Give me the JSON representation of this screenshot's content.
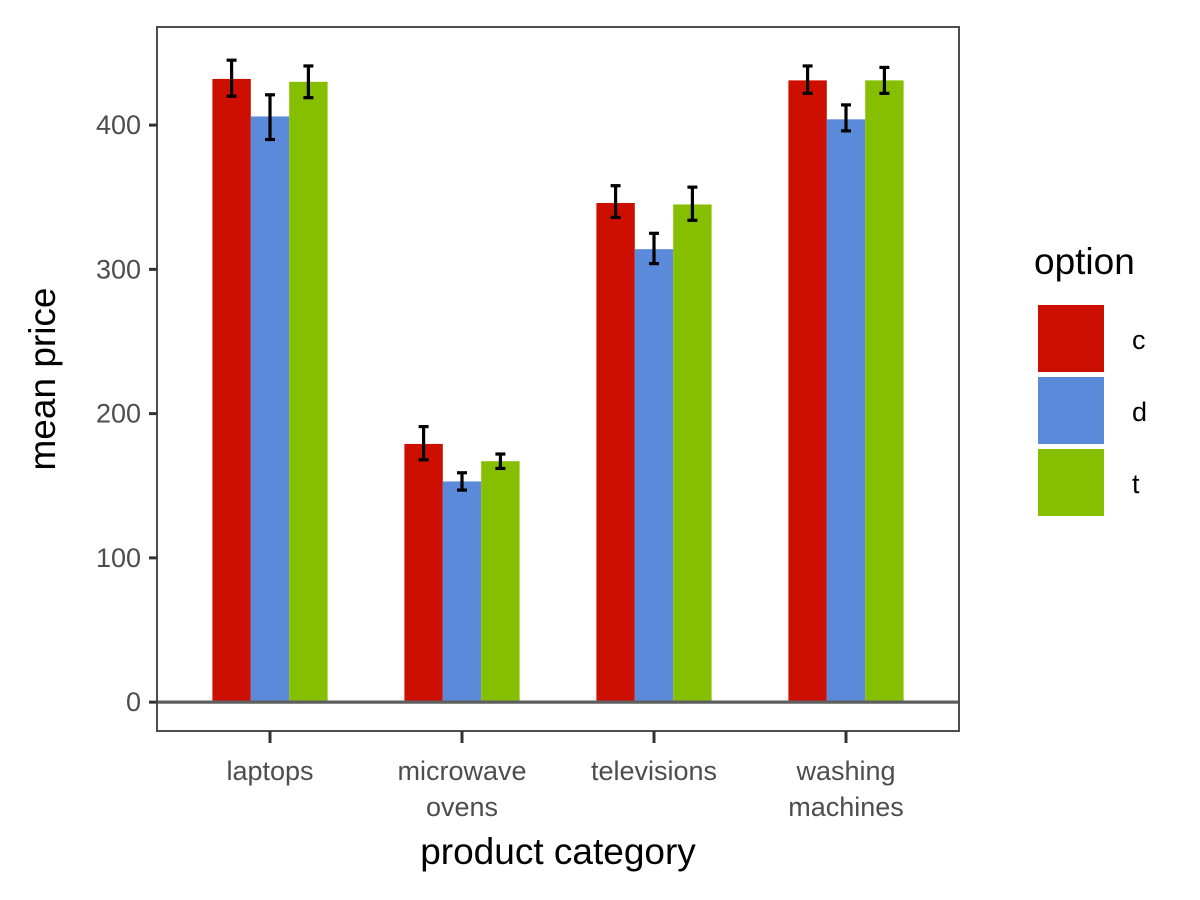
{
  "chart_data": {
    "type": "bar",
    "title": "",
    "xlabel": "product category",
    "ylabel": "mean price",
    "ylim": [
      -20,
      468
    ],
    "yticks": [
      0,
      100,
      200,
      300,
      400
    ],
    "grid": false,
    "legend_position": "right",
    "legend_title": "option",
    "categories": [
      [
        "laptops"
      ],
      [
        "microwave",
        "ovens"
      ],
      [
        "televisions"
      ],
      [
        "washing",
        "machines"
      ]
    ],
    "series": [
      {
        "name": "c",
        "color": "#cc0f00",
        "values": [
          432,
          179,
          346,
          431
        ],
        "err_low": [
          420,
          168,
          336,
          422
        ],
        "err_high": [
          445,
          191,
          358,
          441
        ]
      },
      {
        "name": "d",
        "color": "#5b8adb",
        "values": [
          406,
          153,
          314,
          404
        ],
        "err_low": [
          390,
          147,
          304,
          396
        ],
        "err_high": [
          421,
          159,
          325,
          414
        ]
      },
      {
        "name": "t",
        "color": "#86be00",
        "values": [
          430,
          167,
          345,
          431
        ],
        "err_low": [
          419,
          162,
          334,
          422
        ],
        "err_high": [
          441,
          172,
          357,
          440
        ]
      }
    ]
  }
}
